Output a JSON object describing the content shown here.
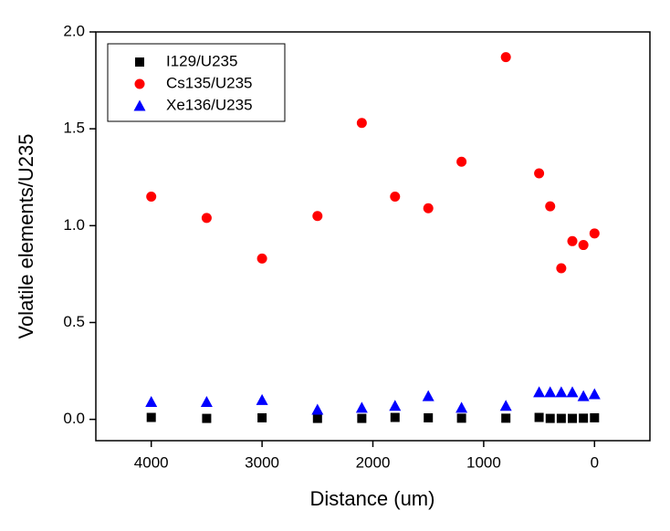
{
  "chart_data": {
    "type": "scatter",
    "x_label": "Distance (um)",
    "y_label": "Volatile elements/U235",
    "x": [
      4000,
      3500,
      3000,
      2500,
      2100,
      1800,
      1500,
      1200,
      800,
      500,
      400,
      300,
      200,
      100,
      0
    ],
    "series": [
      {
        "name": "I129/U235",
        "color": "#000000",
        "marker": "square",
        "values": [
          0.01,
          0.005,
          0.008,
          0.005,
          0.005,
          0.01,
          0.008,
          0.006,
          0.006,
          0.01,
          0.005,
          0.005,
          0.005,
          0.006,
          0.008
        ]
      },
      {
        "name": "Cs135/U235",
        "color": "#ff0000",
        "marker": "circle",
        "values": [
          1.15,
          1.04,
          0.83,
          1.05,
          1.53,
          1.15,
          1.09,
          1.33,
          1.87,
          1.27,
          1.1,
          0.78,
          0.92,
          0.9,
          0.96
        ]
      },
      {
        "name": "Xe136/U235",
        "color": "#0000ff",
        "marker": "triangle",
        "values": [
          0.09,
          0.09,
          0.1,
          0.05,
          0.06,
          0.07,
          0.12,
          0.06,
          0.07,
          0.14,
          0.14,
          0.14,
          0.14,
          0.12,
          0.13
        ]
      }
    ],
    "xlim": [
      4500,
      -500
    ],
    "xticks": [
      4000,
      3000,
      2000,
      1000,
      0
    ],
    "ylim": [
      -0.11,
      2.0
    ],
    "yticks": [
      {
        "value": 0,
        "label": "0.0"
      },
      0.5,
      {
        "value": 1,
        "label": "1.0"
      },
      1.5,
      {
        "value": 2,
        "label": "2.0"
      }
    ],
    "legend": "upper-left"
  }
}
